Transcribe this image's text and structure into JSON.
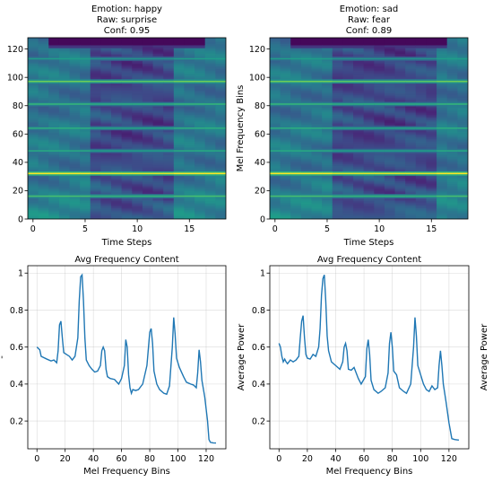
{
  "chart_data": [
    {
      "type": "heatmap",
      "title_lines": [
        "Emotion: happy",
        "Raw: surprise",
        "Conf: 0.95"
      ],
      "xlabel": "Time Steps",
      "ylabel": "",
      "xlim": [
        -0.5,
        18.5
      ],
      "ylim": [
        0,
        128
      ],
      "xticks": [
        0,
        5,
        10,
        15
      ],
      "yticks": [
        0,
        20,
        40,
        60,
        80,
        100,
        120
      ],
      "colormap": "viridis",
      "bands": [
        {
          "bin": 32,
          "value": 1.0
        },
        {
          "bin": 97,
          "value": 0.78
        },
        {
          "bin": 16,
          "value": 0.7
        },
        {
          "bin": 81,
          "value": 0.66
        },
        {
          "bin": 64,
          "value": 0.62
        },
        {
          "bin": 48,
          "value": 0.6
        },
        {
          "bin": 113,
          "value": 0.55
        }
      ],
      "low_energy_steps": [
        6,
        13
      ],
      "top_dark_region": {
        "from_step": 2,
        "to_step": 16,
        "from_bin": 123
      }
    },
    {
      "type": "heatmap",
      "title_lines": [
        "Emotion: sad",
        "Raw: fear",
        "Conf: 0.89"
      ],
      "xlabel": "Time Steps",
      "ylabel": "Mel Frequency Bins",
      "xlim": [
        -0.5,
        18.5
      ],
      "ylim": [
        0,
        128
      ],
      "xticks": [
        0,
        5,
        10,
        15
      ],
      "yticks": [
        0,
        20,
        40,
        60,
        80,
        100,
        120
      ],
      "colormap": "viridis",
      "bands": [
        {
          "bin": 32,
          "value": 1.0
        },
        {
          "bin": 97,
          "value": 0.78
        },
        {
          "bin": 16,
          "value": 0.7
        },
        {
          "bin": 81,
          "value": 0.66
        },
        {
          "bin": 64,
          "value": 0.62
        },
        {
          "bin": 48,
          "value": 0.6
        },
        {
          "bin": 113,
          "value": 0.55
        }
      ],
      "low_energy_steps": [
        6,
        15
      ],
      "top_dark_region": {
        "from_step": 2,
        "to_step": 16,
        "from_bin": 123
      }
    },
    {
      "type": "line",
      "title": "Avg Frequency Content",
      "xlabel": "Mel Frequency Bins",
      "ylabel": "-",
      "xlim": [
        -6.5,
        134
      ],
      "ylim": [
        0.05,
        1.04
      ],
      "xticks": [
        0,
        20,
        40,
        60,
        80,
        100,
        120
      ],
      "yticks": [
        0.2,
        0.4,
        0.6,
        0.8,
        1.0
      ],
      "grid": true,
      "color": "#1f77b4",
      "points": [
        [
          0,
          0.6
        ],
        [
          2,
          0.585
        ],
        [
          3,
          0.55
        ],
        [
          7,
          0.535
        ],
        [
          10,
          0.525
        ],
        [
          12,
          0.53
        ],
        [
          14,
          0.515
        ],
        [
          15,
          0.58
        ],
        [
          16,
          0.72
        ],
        [
          17,
          0.74
        ],
        [
          18,
          0.65
        ],
        [
          19,
          0.57
        ],
        [
          21,
          0.56
        ],
        [
          23,
          0.55
        ],
        [
          25,
          0.53
        ],
        [
          27,
          0.55
        ],
        [
          29,
          0.65
        ],
        [
          30,
          0.85
        ],
        [
          31,
          0.98
        ],
        [
          32,
          0.99
        ],
        [
          33,
          0.85
        ],
        [
          34,
          0.65
        ],
        [
          35,
          0.53
        ],
        [
          37,
          0.5
        ],
        [
          39,
          0.48
        ],
        [
          41,
          0.465
        ],
        [
          43,
          0.47
        ],
        [
          45,
          0.5
        ],
        [
          46,
          0.58
        ],
        [
          47,
          0.6
        ],
        [
          48,
          0.58
        ],
        [
          49,
          0.48
        ],
        [
          50,
          0.44
        ],
        [
          52,
          0.43
        ],
        [
          55,
          0.425
        ],
        [
          58,
          0.4
        ],
        [
          60,
          0.43
        ],
        [
          62,
          0.5
        ],
        [
          63,
          0.64
        ],
        [
          64,
          0.6
        ],
        [
          65,
          0.45
        ],
        [
          66,
          0.38
        ],
        [
          67,
          0.35
        ],
        [
          68,
          0.37
        ],
        [
          70,
          0.365
        ],
        [
          72,
          0.37
        ],
        [
          75,
          0.4
        ],
        [
          78,
          0.5
        ],
        [
          80,
          0.68
        ],
        [
          81,
          0.7
        ],
        [
          82,
          0.62
        ],
        [
          83,
          0.47
        ],
        [
          85,
          0.4
        ],
        [
          87,
          0.37
        ],
        [
          90,
          0.35
        ],
        [
          92,
          0.345
        ],
        [
          94,
          0.39
        ],
        [
          96,
          0.6
        ],
        [
          97,
          0.76
        ],
        [
          98,
          0.67
        ],
        [
          99,
          0.54
        ],
        [
          101,
          0.49
        ],
        [
          104,
          0.44
        ],
        [
          106,
          0.41
        ],
        [
          109,
          0.4
        ],
        [
          111,
          0.395
        ],
        [
          113,
          0.38
        ],
        [
          114,
          0.46
        ],
        [
          115,
          0.585
        ],
        [
          116,
          0.52
        ],
        [
          117,
          0.42
        ],
        [
          119,
          0.33
        ],
        [
          121,
          0.2
        ],
        [
          122,
          0.1
        ],
        [
          123,
          0.085
        ],
        [
          125,
          0.082
        ],
        [
          127,
          0.081
        ]
      ]
    },
    {
      "type": "line",
      "title": "Avg Frequency Content",
      "xlabel": "Mel Frequency Bins",
      "ylabel": "Average Power",
      "xlim": [
        -6.5,
        134
      ],
      "ylim": [
        0.05,
        1.04
      ],
      "xticks": [
        0,
        20,
        40,
        60,
        80,
        100,
        120
      ],
      "yticks": [
        0.2,
        0.4,
        0.6,
        0.8,
        1.0
      ],
      "grid": true,
      "color": "#1f77b4",
      "points": [
        [
          0,
          0.62
        ],
        [
          1,
          0.6
        ],
        [
          2,
          0.55
        ],
        [
          3,
          0.52
        ],
        [
          4,
          0.535
        ],
        [
          5,
          0.52
        ],
        [
          6,
          0.51
        ],
        [
          8,
          0.53
        ],
        [
          10,
          0.52
        ],
        [
          12,
          0.53
        ],
        [
          14,
          0.55
        ],
        [
          15,
          0.65
        ],
        [
          16,
          0.74
        ],
        [
          17,
          0.77
        ],
        [
          18,
          0.65
        ],
        [
          19,
          0.56
        ],
        [
          20,
          0.54
        ],
        [
          22,
          0.535
        ],
        [
          24,
          0.56
        ],
        [
          26,
          0.55
        ],
        [
          28,
          0.6
        ],
        [
          29,
          0.7
        ],
        [
          30,
          0.88
        ],
        [
          31,
          0.97
        ],
        [
          32,
          0.99
        ],
        [
          33,
          0.85
        ],
        [
          34,
          0.66
        ],
        [
          35,
          0.58
        ],
        [
          37,
          0.52
        ],
        [
          40,
          0.5
        ],
        [
          43,
          0.48
        ],
        [
          45,
          0.52
        ],
        [
          46,
          0.6
        ],
        [
          47,
          0.62
        ],
        [
          48,
          0.58
        ],
        [
          49,
          0.48
        ],
        [
          51,
          0.475
        ],
        [
          53,
          0.49
        ],
        [
          56,
          0.43
        ],
        [
          58,
          0.4
        ],
        [
          61,
          0.44
        ],
        [
          62,
          0.59
        ],
        [
          63,
          0.64
        ],
        [
          64,
          0.56
        ],
        [
          65,
          0.42
        ],
        [
          67,
          0.37
        ],
        [
          70,
          0.35
        ],
        [
          72,
          0.36
        ],
        [
          75,
          0.38
        ],
        [
          77,
          0.46
        ],
        [
          78,
          0.62
        ],
        [
          79,
          0.68
        ],
        [
          80,
          0.6
        ],
        [
          81,
          0.47
        ],
        [
          83,
          0.45
        ],
        [
          85,
          0.38
        ],
        [
          88,
          0.36
        ],
        [
          90,
          0.35
        ],
        [
          93,
          0.4
        ],
        [
          95,
          0.6
        ],
        [
          96,
          0.76
        ],
        [
          97,
          0.66
        ],
        [
          98,
          0.5
        ],
        [
          100,
          0.45
        ],
        [
          102,
          0.4
        ],
        [
          104,
          0.37
        ],
        [
          106,
          0.36
        ],
        [
          108,
          0.39
        ],
        [
          110,
          0.37
        ],
        [
          112,
          0.38
        ],
        [
          113,
          0.5
        ],
        [
          114,
          0.58
        ],
        [
          115,
          0.5
        ],
        [
          116,
          0.4
        ],
        [
          118,
          0.3
        ],
        [
          120,
          0.19
        ],
        [
          122,
          0.105
        ],
        [
          124,
          0.1
        ],
        [
          127,
          0.097
        ]
      ]
    }
  ],
  "right_label": "Average Power"
}
